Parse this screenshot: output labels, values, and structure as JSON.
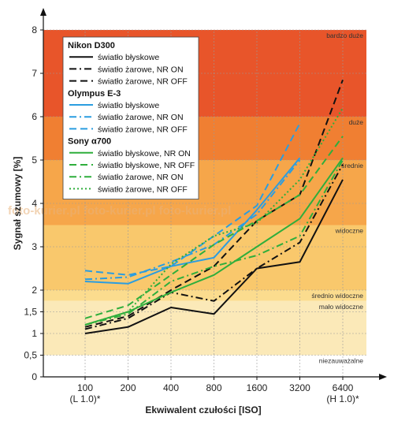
{
  "chart_data": {
    "type": "line",
    "xlabel": "Ekwiwalent czułości [ISO]",
    "ylabel": "Sygnał szumowy [%]",
    "x_categories": [
      "100",
      "200",
      "400",
      "800",
      "1600",
      "3200",
      "6400"
    ],
    "x_sublabels": [
      "(L 1.0)*",
      "",
      "",
      "",
      "",
      "",
      "(H 1.0)*"
    ],
    "y_ticks": [
      "0",
      "0,5",
      "1",
      "1,5",
      "2",
      "3",
      "4",
      "5",
      "6",
      "7",
      "8"
    ],
    "ylim": [
      0,
      8
    ],
    "y_scale": "piecewise-linear",
    "watermark": "foto-kurier.pl foto-kurier.pl foto-kurier.pl",
    "bands": [
      {
        "label": "bardzo duże",
        "from": 6,
        "to": 8,
        "color": "#e8552a"
      },
      {
        "label": "duże",
        "from": 5,
        "to": 6,
        "color": "#f07f32"
      },
      {
        "label": "średnie",
        "from": 3.5,
        "to": 5,
        "color": "#f6a64a"
      },
      {
        "label": "widoczne",
        "from": 2,
        "to": 3.5,
        "color": "#f9c86c"
      },
      {
        "label": "średnio widoczne",
        "from": 1.75,
        "to": 2,
        "color": "#fbdc8e"
      },
      {
        "label": "mało widoczne",
        "from": 0.5,
        "to": 1.75,
        "color": "#fbe9b8"
      },
      {
        "label": "niezauważalne",
        "from": 0,
        "to": 0.5,
        "color": "#ffffff"
      }
    ],
    "groups": [
      {
        "name": "Nikon D300",
        "series": [
          {
            "name": "światło błyskowe",
            "color": "#111111",
            "dash": "solid",
            "values": [
              1.0,
              1.15,
              1.6,
              1.45,
              2.5,
              2.65,
              4.55
            ]
          },
          {
            "name": "światło żarowe, NR ON",
            "color": "#111111",
            "dash": "dashdot",
            "values": [
              1.1,
              1.35,
              1.95,
              1.75,
              2.5,
              3.1,
              4.9
            ]
          },
          {
            "name": "światło żarowe, NR OFF",
            "color": "#111111",
            "dash": "dashed",
            "values": [
              1.15,
              1.4,
              2.0,
              2.55,
              3.6,
              4.2,
              6.85
            ]
          }
        ]
      },
      {
        "name": "Olympus E-3",
        "series": [
          {
            "name": "światło błyskowe",
            "color": "#2b9de0",
            "dash": "solid",
            "values": [
              2.2,
              2.15,
              2.55,
              2.75,
              3.85,
              5.05,
              null
            ]
          },
          {
            "name": "światło żarowe, NR ON",
            "color": "#2b9de0",
            "dash": "dashdot",
            "values": [
              2.25,
              2.3,
              2.65,
              3.05,
              3.75,
              5.0,
              null
            ]
          },
          {
            "name": "światło żarowe, NR OFF",
            "color": "#2b9de0",
            "dash": "dashed",
            "values": [
              2.45,
              2.35,
              2.55,
              3.25,
              3.95,
              5.85,
              null
            ]
          }
        ]
      },
      {
        "name": "Sony α700",
        "series": [
          {
            "name": "światło błyskowe, NR ON",
            "color": "#2fae3c",
            "dash": "solid",
            "values": [
              1.2,
              1.5,
              1.95,
              2.35,
              3.0,
              3.65,
              5.05
            ]
          },
          {
            "name": "światło błyskowe, NR OFF",
            "color": "#2fae3c",
            "dash": "dashed",
            "values": [
              1.35,
              1.65,
              2.35,
              3.05,
              3.6,
              4.2,
              5.55
            ]
          },
          {
            "name": "światło żarowe, NR ON",
            "color": "#2fae3c",
            "dash": "dashdot",
            "values": [
              1.2,
              1.45,
              2.2,
              2.55,
              2.8,
              3.25,
              5.0
            ]
          },
          {
            "name": "światło żarowe, NR OFF",
            "color": "#2fae3c",
            "dash": "dotted",
            "values": [
              1.2,
              1.5,
              2.6,
              3.25,
              3.55,
              4.55,
              6.2
            ]
          }
        ]
      }
    ]
  }
}
